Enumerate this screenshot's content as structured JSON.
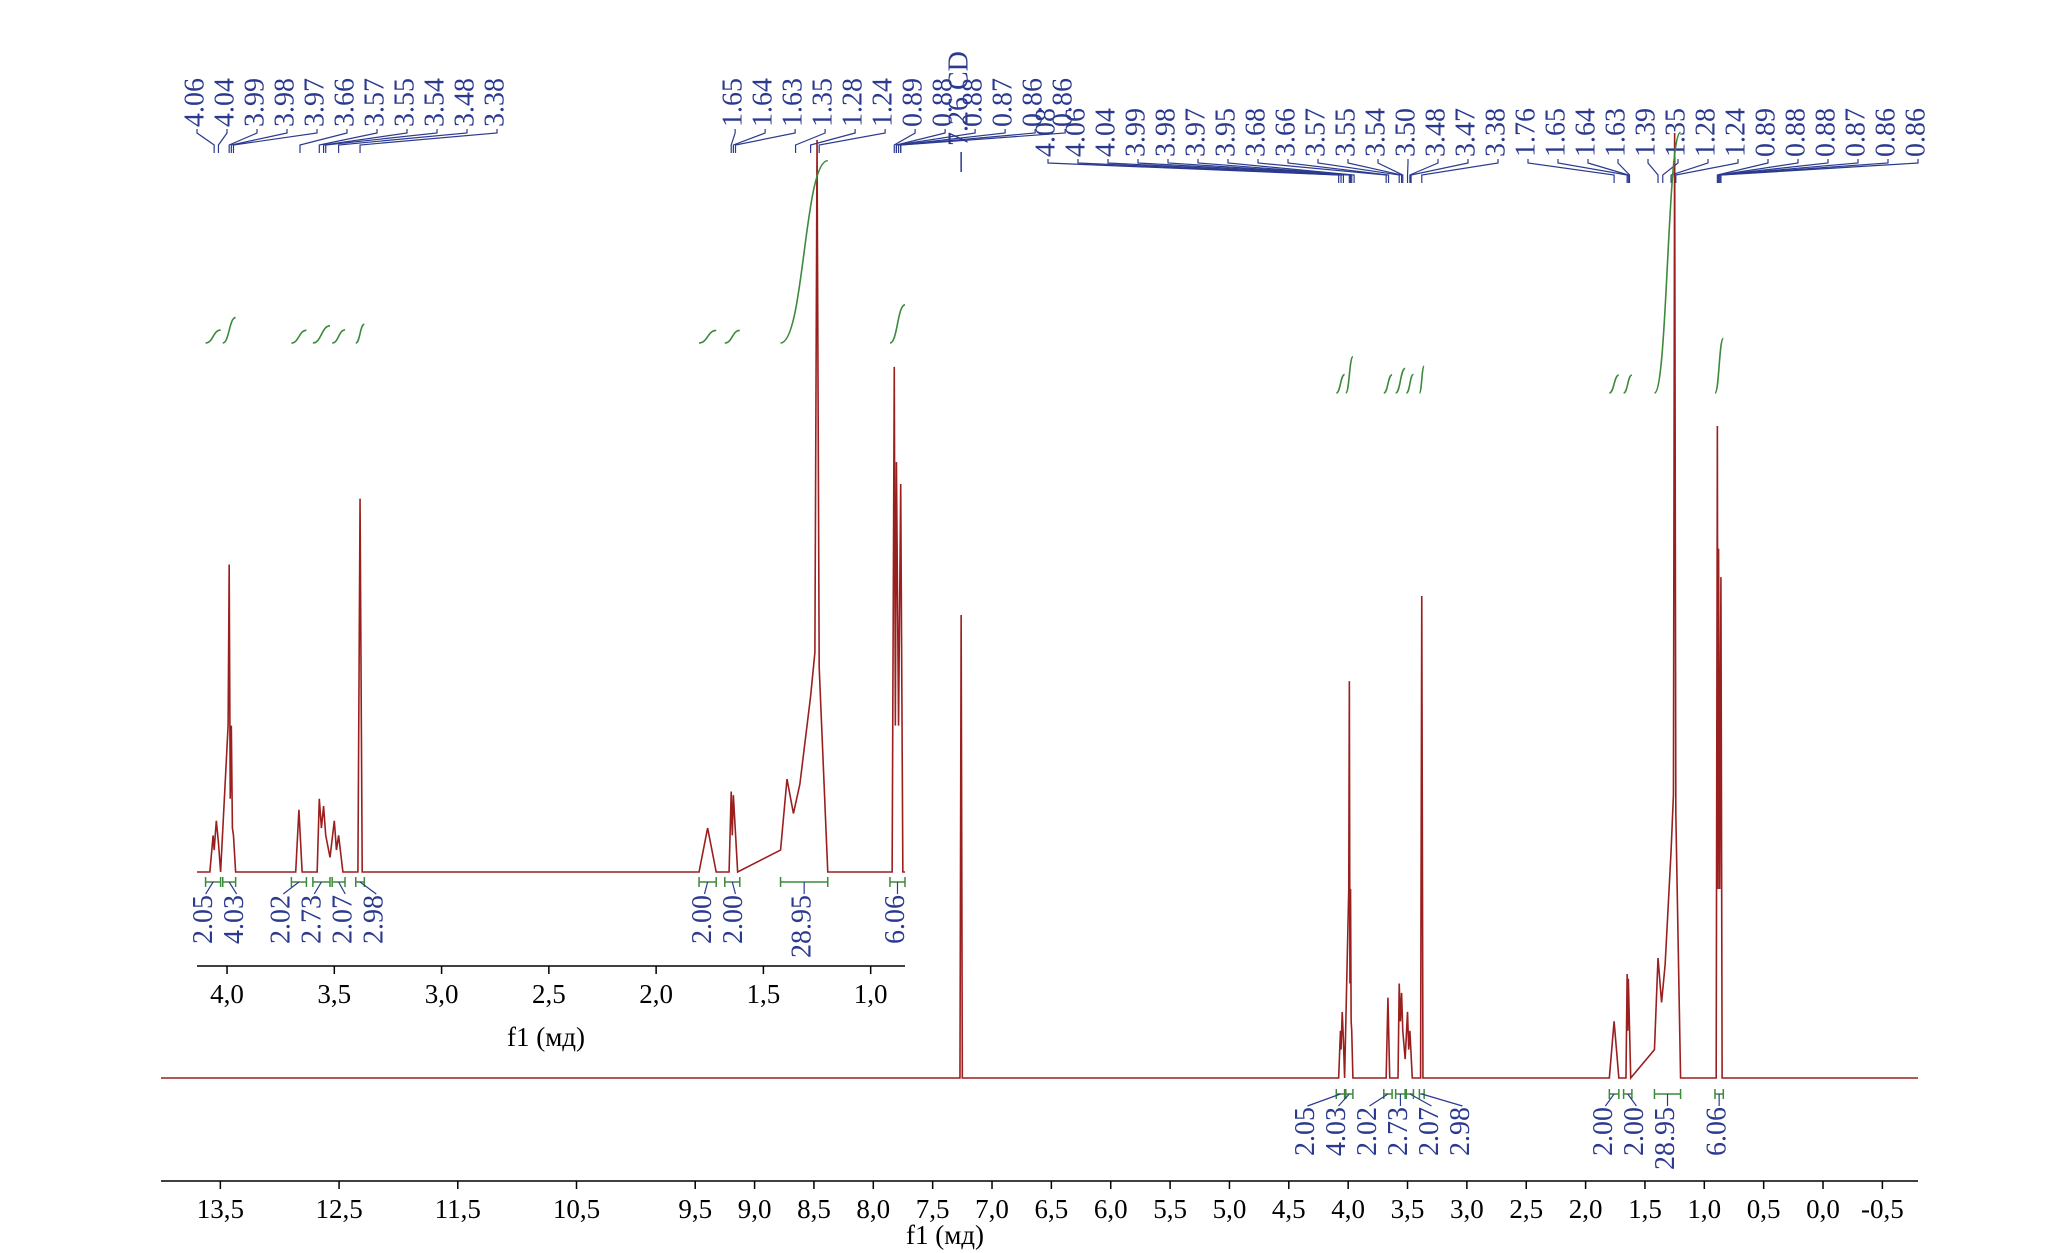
{
  "chart_data": {
    "type": "line",
    "x": [
      14.0,
      7.27,
      7.26,
      7.25,
      4.08,
      4.065,
      4.06,
      4.05,
      4.04,
      4.03,
      3.995,
      3.99,
      3.985,
      3.98,
      3.975,
      3.97,
      3.96,
      3.68,
      3.665,
      3.65,
      3.58,
      3.57,
      3.56,
      3.55,
      3.54,
      3.52,
      3.5,
      3.49,
      3.48,
      3.46,
      3.39,
      3.38,
      3.37,
      1.8,
      1.76,
      1.72,
      1.66,
      1.65,
      1.645,
      1.64,
      1.62,
      1.42,
      1.39,
      1.36,
      1.33,
      1.28,
      1.26,
      1.25,
      1.24,
      1.2,
      0.9,
      0.89,
      0.885,
      0.88,
      0.87,
      0.86,
      0.85,
      -0.8
    ],
    "values": [
      0,
      0,
      49,
      0,
      0,
      5,
      3,
      7,
      4,
      0,
      20,
      42,
      10,
      20,
      6,
      5,
      0,
      0,
      8.5,
      0,
      0,
      10,
      6,
      9,
      5,
      2,
      7,
      3,
      5,
      0,
      0,
      51,
      0,
      0,
      6,
      0,
      0,
      11,
      5,
      10.5,
      0,
      3,
      12.7,
      8,
      12,
      24,
      30,
      100,
      28,
      0,
      0,
      69,
      20,
      56,
      20,
      53,
      0,
      0
    ],
    "color": "#9a1f1f",
    "xlim": [
      14.0,
      -0.8
    ],
    "xticks": [
      {
        "value": 13.5,
        "label": "13,5"
      },
      {
        "value": 12.5,
        "label": "12,5"
      },
      {
        "value": 11.5,
        "label": "11,5"
      },
      {
        "value": 10.5,
        "label": "10,5"
      },
      {
        "value": 9.5,
        "label": "9,5"
      },
      {
        "value": 9.0,
        "label": "9,0"
      },
      {
        "value": 8.5,
        "label": "8,5"
      },
      {
        "value": 8.0,
        "label": "8,0"
      },
      {
        "value": 7.5,
        "label": "7,5"
      },
      {
        "value": 7.0,
        "label": "7,0"
      },
      {
        "value": 6.5,
        "label": "6,5"
      },
      {
        "value": 6.0,
        "label": "6,0"
      },
      {
        "value": 5.5,
        "label": "5,5"
      },
      {
        "value": 5.0,
        "label": "5,0"
      },
      {
        "value": 4.5,
        "label": "4,5"
      },
      {
        "value": 4.0,
        "label": "4,0"
      },
      {
        "value": 3.5,
        "label": "3,5"
      },
      {
        "value": 3.0,
        "label": "3,0"
      },
      {
        "value": 2.5,
        "label": "2,5"
      },
      {
        "value": 2.0,
        "label": "2,0"
      },
      {
        "value": 1.5,
        "label": "1,5"
      },
      {
        "value": 1.0,
        "label": "1,0"
      },
      {
        "value": 0.5,
        "label": "0,5"
      },
      {
        "value": 0.0,
        "label": "0,0"
      },
      {
        "value": -0.5,
        "label": "-0,5"
      }
    ],
    "xlabel": "f1 (мд)",
    "solvent_label": "7.26 CD",
    "peak_labels": [
      "4.08",
      "4.06",
      "4.04",
      "3.99",
      "3.98",
      "3.97",
      "3.95",
      "3.68",
      "3.66",
      "3.57",
      "3.55",
      "3.54",
      "3.50",
      "3.48",
      "3.47",
      "3.38",
      "1.76",
      "1.65",
      "1.64",
      "1.63",
      "1.39",
      "1.35",
      "1.28",
      "1.24",
      "0.89",
      "0.88",
      "0.88",
      "0.87",
      "0.86",
      "0.86"
    ],
    "integrals": [
      {
        "label": "2.05",
        "range": [
          4.1,
          4.03
        ]
      },
      {
        "label": "4.03",
        "range": [
          4.02,
          3.96
        ]
      },
      {
        "label": "2.02",
        "range": [
          3.7,
          3.63
        ]
      },
      {
        "label": "2.73",
        "range": [
          3.6,
          3.52
        ]
      },
      {
        "label": "2.07",
        "range": [
          3.51,
          3.45
        ]
      },
      {
        "label": "2.98",
        "range": [
          3.4,
          3.36
        ]
      },
      {
        "label": "2.00",
        "range": [
          1.8,
          1.72
        ]
      },
      {
        "label": "2.00",
        "range": [
          1.68,
          1.61
        ]
      },
      {
        "label": "28.95",
        "range": [
          1.42,
          1.2
        ]
      },
      {
        "label": "6.06",
        "range": [
          0.91,
          0.84
        ]
      }
    ],
    "inset": {
      "xlim": [
        4.14,
        0.84
      ],
      "xticks": [
        {
          "value": 4.0,
          "label": "4,0"
        },
        {
          "value": 3.5,
          "label": "3,5"
        },
        {
          "value": 3.0,
          "label": "3,0"
        },
        {
          "value": 2.5,
          "label": "2,5"
        },
        {
          "value": 2.0,
          "label": "2,0"
        },
        {
          "value": 1.5,
          "label": "1,5"
        },
        {
          "value": 1.0,
          "label": "1,0"
        }
      ],
      "xlabel": "f1 (мд)",
      "peak_labels": [
        "4.06",
        "4.04",
        "3.99",
        "3.98",
        "3.97",
        "3.66",
        "3.57",
        "3.55",
        "3.54",
        "3.48",
        "3.38",
        "1.65",
        "1.64",
        "1.63",
        "1.35",
        "1.28",
        "1.24",
        "0.89",
        "0.88",
        "0.88",
        "0.87",
        "0.86",
        "0.86"
      ]
    }
  }
}
